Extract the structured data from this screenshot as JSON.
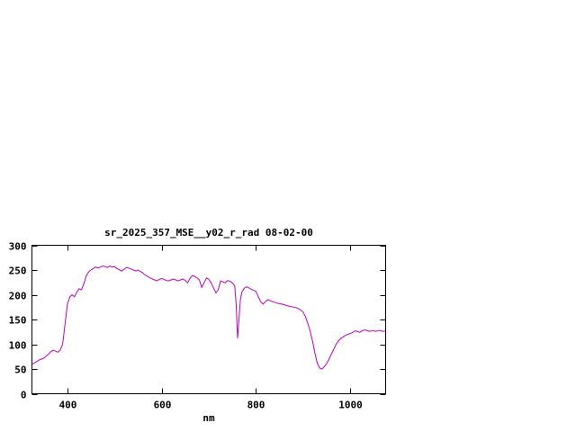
{
  "window": {
    "background": "#ffffff"
  },
  "chart_data": {
    "type": "line",
    "title": "sr_2025_357_MSE__y02_r_rad 08-02-00",
    "xlabel": "nm",
    "ylabel": "",
    "xlim": [
      325,
      1075
    ],
    "ylim": [
      0,
      300
    ],
    "xticks": [
      400,
      600,
      800,
      1000
    ],
    "yticks": [
      0,
      50,
      100,
      150,
      200,
      250,
      300
    ],
    "grid": false,
    "legend_position": "none",
    "line_color": "#bb00bb",
    "axis_color": "#000000",
    "x": [
      325,
      330,
      335,
      340,
      345,
      350,
      355,
      360,
      365,
      370,
      375,
      380,
      385,
      390,
      395,
      400,
      405,
      410,
      415,
      420,
      425,
      430,
      435,
      440,
      445,
      450,
      455,
      460,
      465,
      470,
      475,
      480,
      485,
      490,
      495,
      500,
      505,
      510,
      515,
      520,
      525,
      530,
      535,
      540,
      545,
      550,
      555,
      560,
      565,
      570,
      575,
      580,
      585,
      590,
      595,
      600,
      605,
      610,
      615,
      620,
      625,
      630,
      635,
      640,
      645,
      650,
      655,
      660,
      665,
      670,
      675,
      680,
      685,
      690,
      695,
      700,
      705,
      710,
      715,
      720,
      725,
      730,
      735,
      740,
      745,
      750,
      755,
      758,
      761,
      764,
      767,
      770,
      775,
      780,
      785,
      790,
      795,
      800,
      805,
      810,
      815,
      820,
      825,
      830,
      835,
      840,
      845,
      850,
      855,
      860,
      865,
      870,
      875,
      880,
      885,
      890,
      895,
      900,
      905,
      910,
      915,
      920,
      925,
      930,
      935,
      940,
      945,
      950,
      955,
      960,
      965,
      970,
      975,
      980,
      985,
      990,
      995,
      1000,
      1005,
      1010,
      1015,
      1020,
      1025,
      1030,
      1035,
      1040,
      1045,
      1050,
      1055,
      1060,
      1065,
      1070,
      1075
    ],
    "values": [
      60,
      62,
      65,
      68,
      70,
      72,
      76,
      80,
      85,
      88,
      86,
      84,
      88,
      100,
      140,
      180,
      195,
      200,
      196,
      205,
      212,
      210,
      222,
      238,
      246,
      250,
      253,
      256,
      254,
      256,
      258,
      257,
      255,
      258,
      256,
      257,
      253,
      251,
      248,
      251,
      255,
      254,
      252,
      250,
      248,
      250,
      247,
      244,
      240,
      237,
      234,
      232,
      230,
      228,
      231,
      233,
      231,
      229,
      228,
      230,
      232,
      230,
      228,
      230,
      232,
      229,
      224,
      233,
      239,
      237,
      234,
      230,
      215,
      224,
      234,
      231,
      224,
      214,
      204,
      210,
      228,
      226,
      224,
      229,
      227,
      224,
      218,
      180,
      112,
      150,
      190,
      205,
      213,
      216,
      214,
      211,
      209,
      207,
      196,
      186,
      181,
      186,
      190,
      188,
      186,
      185,
      183,
      182,
      181,
      180,
      178,
      177,
      176,
      175,
      174,
      172,
      169,
      165,
      156,
      142,
      126,
      106,
      82,
      62,
      52,
      50,
      55,
      61,
      70,
      80,
      90,
      100,
      107,
      112,
      115,
      118,
      120,
      122,
      124,
      127,
      126,
      124,
      127,
      129,
      128,
      126,
      127,
      127,
      126,
      128,
      127,
      126,
      127
    ]
  }
}
